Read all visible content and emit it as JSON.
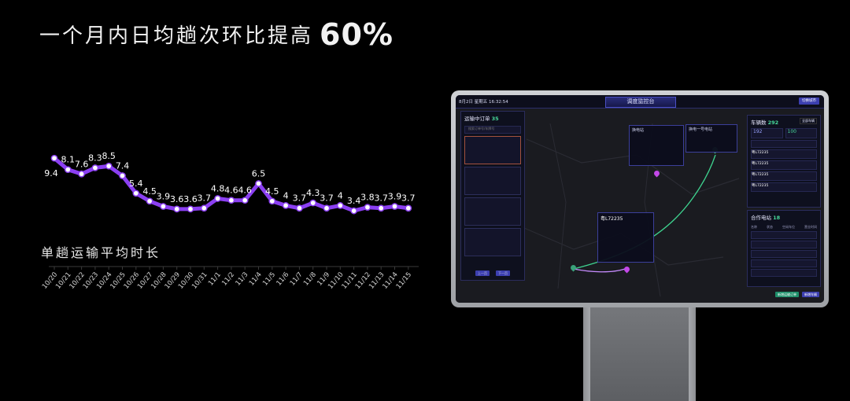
{
  "headline": {
    "text": "一个月内日均趟次环比提高",
    "highlight": "60%"
  },
  "chart_data": {
    "type": "line",
    "title": "单趟运输平均时长",
    "categories": [
      "10/20",
      "10/21",
      "10/22",
      "10/23",
      "10/24",
      "10/25",
      "10/26",
      "10/27",
      "10/28",
      "10/29",
      "10/30",
      "10/31",
      "11/1",
      "11/2",
      "11/3",
      "11/4",
      "11/5",
      "11/6",
      "11/7",
      "11/8",
      "11/9",
      "11/10",
      "11/11",
      "11/12",
      "11/13",
      "11/14",
      "11/15"
    ],
    "series": [
      {
        "values": [
          9.4,
          8.1,
          7.6,
          8.3,
          8.5,
          7.4,
          5.4,
          4.5,
          3.9,
          3.6,
          3.6,
          3.7,
          4.8,
          4.6,
          4.6,
          6.5,
          4.5,
          4,
          3.7,
          4.3,
          3.7,
          4,
          3.4,
          3.8,
          3.7,
          3.9,
          3.7
        ]
      }
    ],
    "labels": [
      "9.4",
      "8.1",
      "7.6",
      "8.3",
      "8.5",
      "7.4",
      "5.4",
      "4.5",
      "3.9",
      "3.6",
      "3.6",
      "3.7",
      "4.8",
      "4.6",
      "4.6",
      "6.5",
      "4.5",
      "4",
      "3.7",
      "4.3",
      "3.7",
      "4",
      "3.4",
      "3.8",
      "3.7",
      "3.9",
      "3.7"
    ],
    "colors": {
      "line": "#8b3ff2",
      "marker_fill": "#ffffff"
    },
    "grid": false,
    "legend": "none"
  },
  "device": {
    "datetime": "8月2日 星期五 16:32:54",
    "title": "调度监控台",
    "top_button": "切换城市",
    "orders": {
      "label": "运输中订单",
      "count": "35",
      "search_placeholder": "搜索订单号/车牌号",
      "page_prev": "上一页",
      "page_next": "下一页"
    },
    "vehicles": {
      "label": "车辆数",
      "count": "292",
      "filter": "全部车辆",
      "stat1": "192",
      "stat2": "100",
      "plates": [
        "粤L72235",
        "粤L72235",
        "粤L72235",
        "粤L72235"
      ]
    },
    "stations": {
      "label": "合作电站",
      "count": "18",
      "cols": [
        "名称",
        "状态",
        "空闲车位",
        "营业时间"
      ]
    },
    "popup": {
      "plate": "粤L72235"
    },
    "bottom_buttons": [
      "新增运输订单",
      "新增车辆"
    ]
  }
}
